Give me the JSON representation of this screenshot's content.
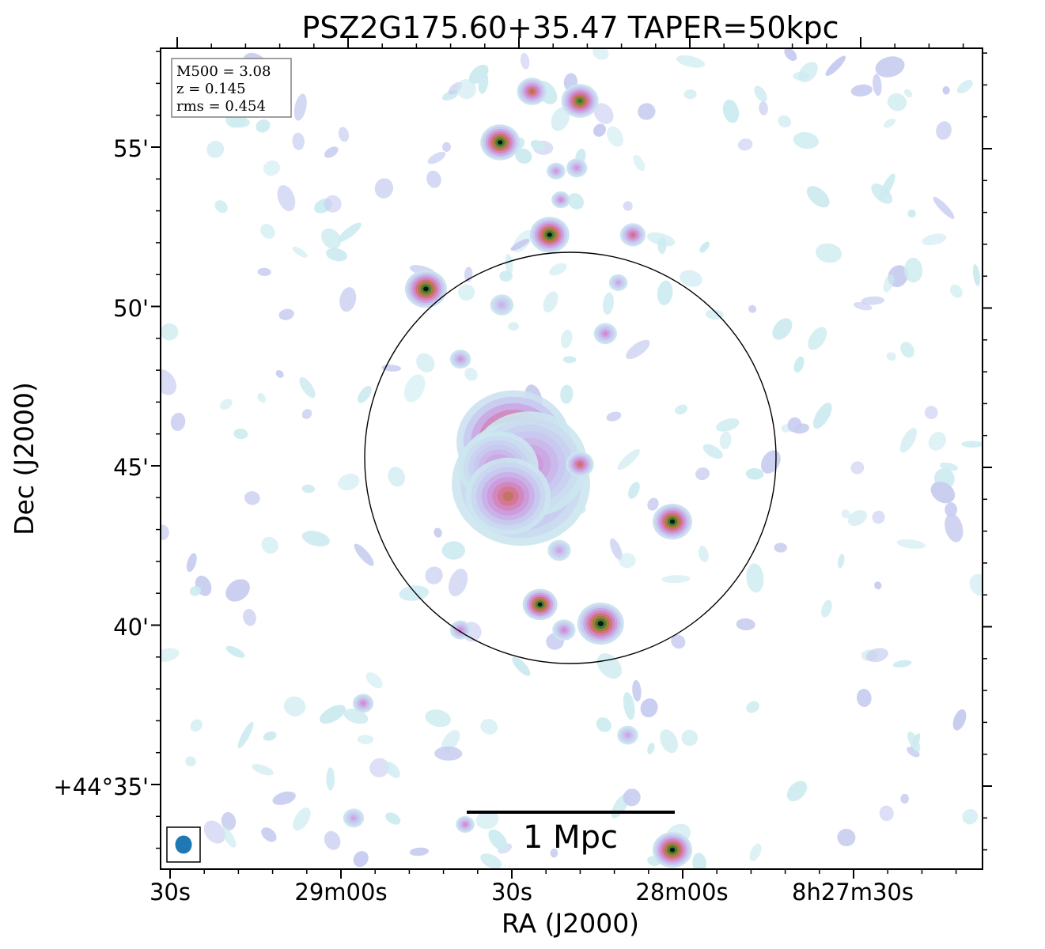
{
  "title": "PSZ2G175.60+35.47 TAPER=50kpc",
  "xlabel": "RA (J2000)",
  "ylabel": "Dec (J2000)",
  "x_ticks": [
    "30s",
    "29m00s",
    "30s",
    "28m00s",
    "8h27m30s"
  ],
  "y_ticks": [
    "55'",
    "50'",
    "45'",
    "40'",
    "+44°35'"
  ],
  "info_box": [
    "M500 = 3.08",
    "z = 0.145",
    "rms = 0.454"
  ],
  "scalebar_label": "1 Mpc",
  "colors": {
    "beam": "#1f77b4",
    "frame": "#000000",
    "info_border": "#808080"
  },
  "sources": [
    {
      "ra": 1.78,
      "dec": 45.7,
      "size": 4.3,
      "peak": 1.0,
      "kind": "core"
    },
    {
      "ra": 1.55,
      "dec": 44.4,
      "size": 5.2,
      "peak": 0.55,
      "kind": "halo"
    },
    {
      "ra": 1.3,
      "dec": 45.0,
      "size": 4.4,
      "peak": 0.45,
      "kind": "halo"
    },
    {
      "ra": 2.25,
      "dec": 44.9,
      "size": 3.0,
      "peak": 0.45,
      "kind": "halo"
    },
    {
      "ra": 1.95,
      "dec": 44.0,
      "size": 3.2,
      "peak": 0.65,
      "kind": "halo"
    },
    {
      "ra": 4.53,
      "dec": 50.5,
      "size": 1.8,
      "peak": 1.0,
      "kind": "point"
    },
    {
      "ra": 2.2,
      "dec": 55.1,
      "size": 1.7,
      "peak": 1.0,
      "kind": "point"
    },
    {
      "ra": 0.65,
      "dec": 52.2,
      "size": 1.7,
      "peak": 1.0,
      "kind": "point"
    },
    {
      "ra": 1.2,
      "dec": 56.7,
      "size": 1.3,
      "peak": 0.7,
      "kind": "point"
    },
    {
      "ra": -0.3,
      "dec": 56.4,
      "size": 1.6,
      "peak": 0.9,
      "kind": "point"
    },
    {
      "ra": -1.96,
      "dec": 52.2,
      "size": 1.1,
      "peak": 0.6,
      "kind": "point"
    },
    {
      "ra": -0.3,
      "dec": 45.0,
      "size": 1.2,
      "peak": 0.65,
      "kind": "point"
    },
    {
      "ra": -3.2,
      "dec": 43.2,
      "size": 1.7,
      "peak": 1.0,
      "kind": "point"
    },
    {
      "ra": 0.95,
      "dec": 40.6,
      "size": 1.5,
      "peak": 1.0,
      "kind": "point"
    },
    {
      "ra": -0.95,
      "dec": 40.0,
      "size": 2.0,
      "peak": 1.0,
      "kind": "point"
    },
    {
      "ra": -3.2,
      "dec": 32.9,
      "size": 1.7,
      "peak": 1.0,
      "kind": "point"
    },
    {
      "ra": 3.45,
      "dec": 39.8,
      "size": 0.9,
      "peak": 0.45,
      "kind": "point"
    },
    {
      "ra": 3.45,
      "dec": 48.3,
      "size": 0.9,
      "peak": 0.4,
      "kind": "point"
    },
    {
      "ra": 0.3,
      "dec": 53.3,
      "size": 0.8,
      "peak": 0.45,
      "kind": "point"
    },
    {
      "ra": 0.45,
      "dec": 54.2,
      "size": 0.8,
      "peak": 0.4,
      "kind": "point"
    },
    {
      "ra": -0.2,
      "dec": 54.3,
      "size": 0.9,
      "peak": 0.4,
      "kind": "point"
    },
    {
      "ra": -1.1,
      "dec": 49.1,
      "size": 1.0,
      "peak": 0.45,
      "kind": "point"
    },
    {
      "ra": -1.5,
      "dec": 50.7,
      "size": 0.8,
      "peak": 0.35,
      "kind": "point"
    },
    {
      "ra": 0.2,
      "dec": 39.8,
      "size": 1.0,
      "peak": 0.45,
      "kind": "point"
    },
    {
      "ra": 6.5,
      "dec": 37.5,
      "size": 0.9,
      "peak": 0.45,
      "kind": "point"
    },
    {
      "ra": 3.3,
      "dec": 33.7,
      "size": 0.8,
      "peak": 0.45,
      "kind": "point"
    },
    {
      "ra": 0.35,
      "dec": 42.3,
      "size": 1.0,
      "peak": 0.35,
      "kind": "point"
    },
    {
      "ra": 2.15,
      "dec": 50.0,
      "size": 1.0,
      "peak": 0.3,
      "kind": "point"
    },
    {
      "ra": -1.8,
      "dec": 36.5,
      "size": 0.9,
      "peak": 0.35,
      "kind": "point"
    },
    {
      "ra": 6.8,
      "dec": 33.9,
      "size": 0.9,
      "peak": 0.35,
      "kind": "point"
    }
  ]
}
